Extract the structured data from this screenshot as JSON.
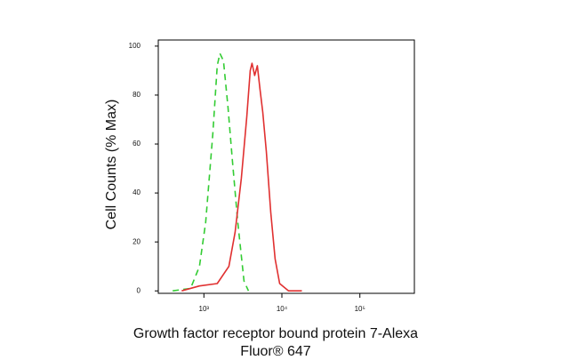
{
  "chart_data": {
    "type": "line",
    "ylabel": "Cell Counts (% Max)",
    "xlabel": [
      "Growth factor receptor bound protein 7-Alexa",
      "Fluor® 647"
    ],
    "xscale": "log",
    "xlim": [
      260,
      500000
    ],
    "xticks": [
      {
        "value": 1000,
        "label": "10³"
      },
      {
        "value": 10000,
        "label": "10⁴"
      },
      {
        "value": 100000,
        "label": "10⁵"
      }
    ],
    "ylim": [
      -1,
      102.5
    ],
    "yticks": [
      0,
      20,
      40,
      60,
      80,
      100
    ],
    "series": [
      {
        "color": "#33cc33",
        "dashed": true,
        "x": [
          398,
          674,
          877,
          1054,
          1301,
          1484,
          1606,
          1783,
          2035,
          2323,
          2718,
          3266,
          3725
        ],
        "values": [
          0,
          1,
          10,
          28,
          64,
          92,
          97,
          94,
          75,
          53,
          28,
          4,
          0
        ]
      },
      {
        "color": "#e03030",
        "dashed": false,
        "x": [
          518,
          877,
          1484,
          2090,
          2512,
          3020,
          3540,
          3928,
          4140,
          4479,
          4850,
          5250,
          5680,
          6310,
          7200,
          8200,
          9360,
          12190,
          18070
        ],
        "values": [
          0,
          2,
          3,
          10,
          24,
          46,
          71,
          90,
          93,
          88,
          92,
          82,
          73,
          57,
          32,
          13,
          3,
          0,
          0
        ]
      }
    ]
  }
}
